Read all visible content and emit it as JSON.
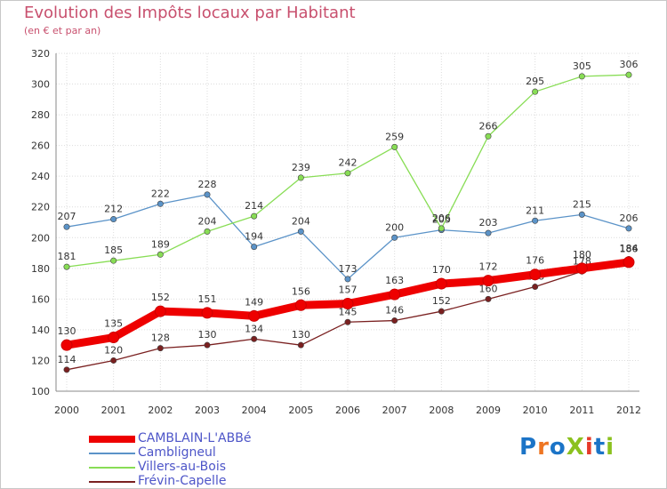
{
  "header": {
    "title": "Evolution des Impôts locaux par Habitant",
    "subtitle": "(en € et par an)"
  },
  "logo": {
    "text": "ProXiti",
    "letter_colors": [
      "#1b74c7",
      "#ee7623",
      "#1b74c7",
      "#8bc11e",
      "#e63a2a",
      "#1b74c7",
      "#8bc11e"
    ]
  },
  "chart_data": {
    "type": "line",
    "x": [
      "2000",
      "2001",
      "2002",
      "2003",
      "2004",
      "2005",
      "2006",
      "2007",
      "2008",
      "2009",
      "2010",
      "2011",
      "2012"
    ],
    "ylim": [
      100,
      320
    ],
    "yticks": [
      "100",
      "120",
      "140",
      "160",
      "180",
      "200",
      "220",
      "240",
      "260",
      "280",
      "300",
      "320"
    ],
    "grid": true,
    "legend_position": "bottom-left",
    "series": [
      {
        "name": "CAMBLAIN-L'ABBé",
        "color": "#ee0000",
        "weight": "thick",
        "values": [
          130,
          135,
          152,
          151,
          149,
          156,
          157,
          163,
          170,
          172,
          176,
          180,
          184
        ]
      },
      {
        "name": "Cambligneul",
        "color": "#5b93c8",
        "weight": "thin",
        "values": [
          207,
          212,
          222,
          228,
          194,
          204,
          173,
          200,
          205,
          203,
          211,
          215,
          206
        ]
      },
      {
        "name": "Villers-au-Bois",
        "color": "#88dd55",
        "weight": "thin",
        "values": [
          181,
          185,
          189,
          204,
          214,
          239,
          242,
          259,
          206,
          266,
          295,
          305,
          306
        ]
      },
      {
        "name": "Frévin-Capelle",
        "color": "#7a2020",
        "weight": "thin",
        "values": [
          114,
          120,
          128,
          130,
          134,
          130,
          145,
          146,
          152,
          160,
          168,
          178,
          186
        ]
      }
    ]
  }
}
